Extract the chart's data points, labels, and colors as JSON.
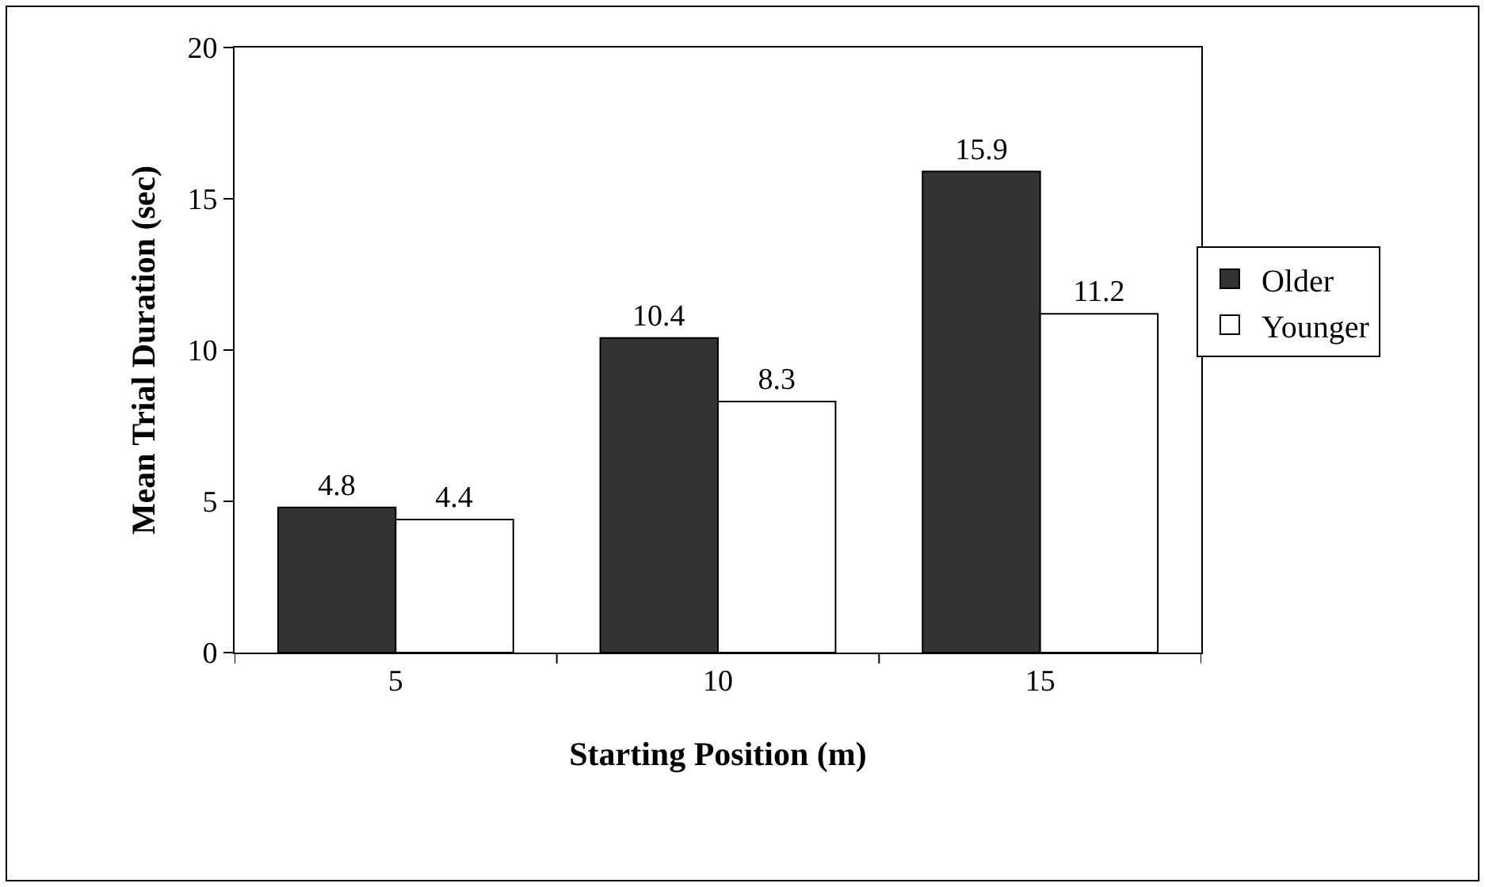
{
  "chart_data": {
    "type": "bar",
    "xlabel": "Starting Position (m)",
    "ylabel": "Mean Trial Duration (sec)",
    "categories": [
      "5",
      "10",
      "15"
    ],
    "series": [
      {
        "name": "Older",
        "color": "#333333",
        "values": [
          4.8,
          10.4,
          15.9
        ]
      },
      {
        "name": "Younger",
        "color": "#ffffff",
        "values": [
          4.4,
          8.3,
          11.2
        ]
      }
    ],
    "ylim": [
      0,
      20
    ],
    "yticks": [
      0,
      5,
      10,
      15,
      20
    ],
    "legend": "right",
    "data_labels": true
  }
}
